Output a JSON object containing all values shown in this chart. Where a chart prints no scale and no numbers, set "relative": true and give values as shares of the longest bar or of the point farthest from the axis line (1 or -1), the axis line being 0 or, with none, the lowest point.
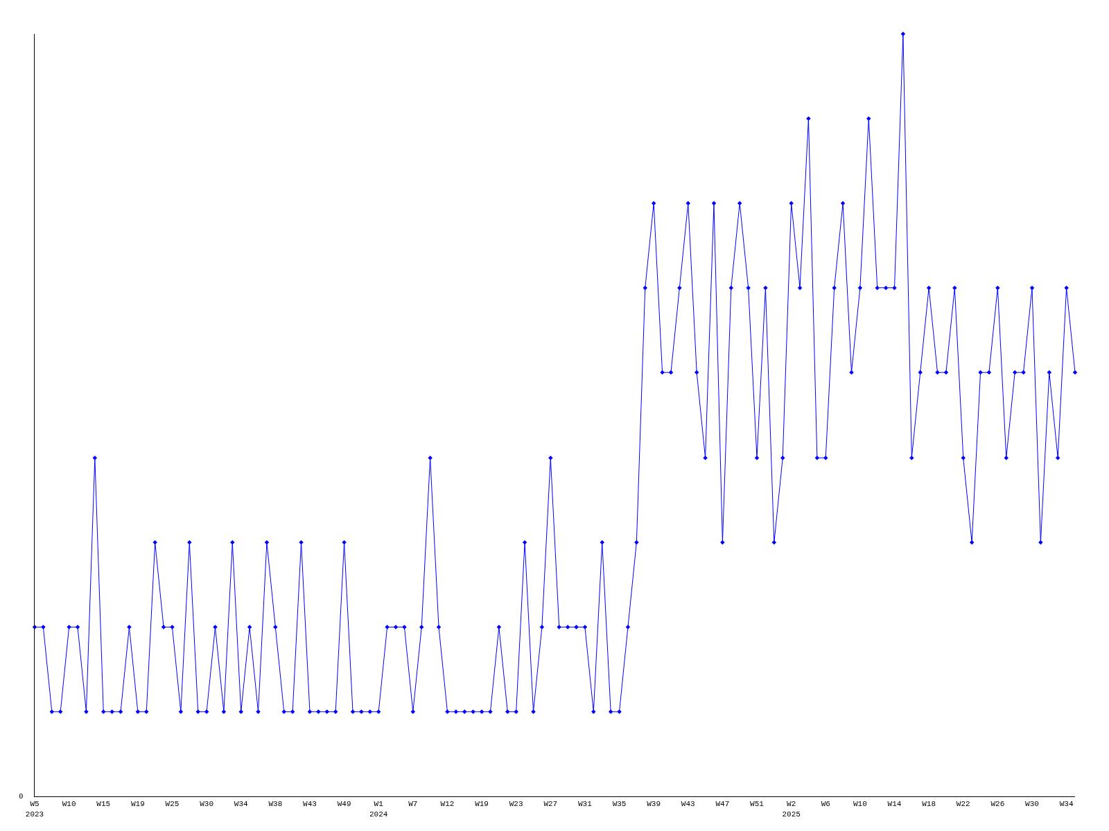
{
  "chart_data": {
    "type": "line",
    "relative": true,
    "marker": "diamond",
    "line_style": "solid",
    "categories": [
      "W5\n2023",
      null,
      null,
      null,
      "W10",
      null,
      null,
      null,
      "W15",
      null,
      null,
      null,
      "W19",
      null,
      null,
      null,
      "W25",
      null,
      null,
      null,
      "W30",
      null,
      null,
      null,
      "W34",
      null,
      null,
      null,
      "W38",
      null,
      null,
      null,
      "W43",
      null,
      null,
      null,
      "W49",
      null,
      null,
      null,
      "W1\n2024",
      null,
      null,
      null,
      "W7",
      null,
      null,
      null,
      "W12",
      null,
      null,
      null,
      "W19",
      null,
      null,
      null,
      "W23",
      null,
      null,
      null,
      "W27",
      null,
      null,
      null,
      "W31",
      null,
      null,
      null,
      "W35",
      null,
      null,
      null,
      "W39",
      null,
      null,
      null,
      "W43",
      null,
      null,
      null,
      "W47",
      null,
      null,
      null,
      "W51",
      null,
      null,
      null,
      "W2\n2025",
      null,
      null,
      null,
      "W6",
      null,
      null,
      null,
      "W10",
      null,
      null,
      null,
      "W14",
      null,
      null,
      null,
      "W18",
      null,
      null,
      null,
      "W22",
      null,
      null,
      null,
      "W26",
      null,
      null,
      null,
      "W30",
      null,
      null,
      null,
      "W34",
      null
    ],
    "series": [
      {
        "color": "#0000ff",
        "values": [
          0.222,
          0.222,
          0.111,
          0.111,
          0.222,
          0.222,
          0.111,
          0.444,
          0.111,
          0.111,
          0.111,
          0.222,
          0.111,
          0.111,
          0.333,
          0.222,
          0.222,
          0.111,
          0.333,
          0.111,
          0.111,
          0.222,
          0.111,
          0.333,
          0.111,
          0.222,
          0.111,
          0.333,
          0.222,
          0.111,
          0.111,
          0.333,
          0.111,
          0.111,
          0.111,
          0.111,
          0.333,
          0.111,
          0.111,
          0.111,
          0.111,
          0.222,
          0.222,
          0.222,
          0.111,
          0.222,
          0.444,
          0.222,
          0.111,
          0.111,
          0.111,
          0.111,
          0.111,
          0.111,
          0.222,
          0.111,
          0.111,
          0.333,
          0.111,
          0.222,
          0.444,
          0.222,
          0.222,
          0.222,
          0.222,
          0.111,
          0.333,
          0.111,
          0.111,
          0.222,
          0.333,
          0.667,
          0.778,
          0.556,
          0.556,
          0.667,
          0.778,
          0.556,
          0.444,
          0.778,
          0.333,
          0.667,
          0.778,
          0.667,
          0.444,
          0.667,
          0.333,
          0.444,
          0.778,
          0.667,
          0.889,
          0.444,
          0.444,
          0.667,
          0.778,
          0.556,
          0.667,
          0.889,
          0.667,
          0.667,
          0.667,
          1,
          0.444,
          0.556,
          0.667,
          0.556,
          0.556,
          0.667,
          0.444,
          0.333,
          0.556,
          0.556,
          0.667,
          0.444,
          0.556,
          0.556,
          0.667,
          0.333,
          0.556,
          0.444,
          0.667,
          0.556
        ]
      }
    ],
    "annotations": [
      "0"
    ]
  }
}
